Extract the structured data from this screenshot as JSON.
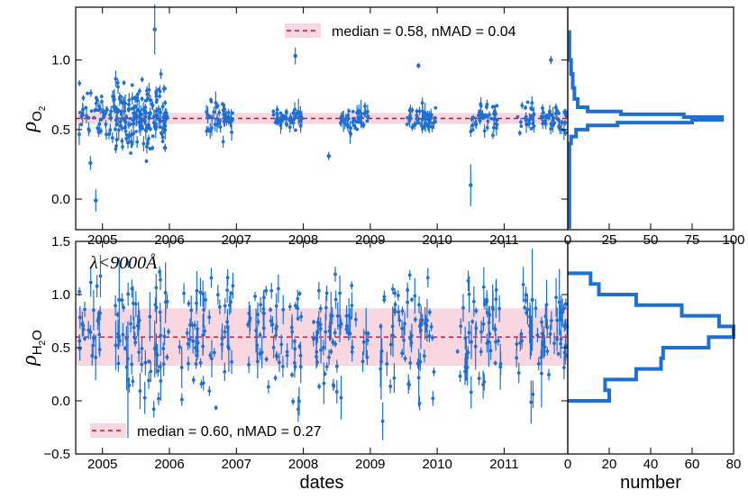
{
  "colors": {
    "points": "#1f6fd1",
    "median_line": "#c8102e",
    "band": "#f8d7e0",
    "frame": "#000000",
    "hist": "#1f6fd1"
  },
  "chart_data": [
    {
      "type": "scatter",
      "name": "rho_O2_vs_dates",
      "ylabel": {
        "symbol": "ρ",
        "subscript": "O",
        "subsub": "2"
      },
      "xlim": [
        2004.6,
        2011.95
      ],
      "ylim": [
        -0.22,
        1.38
      ],
      "yticks": [
        "0.0",
        "0.5",
        "1.0"
      ],
      "yticks_values": [
        0.0,
        0.5,
        1.0
      ],
      "median": 0.58,
      "nmad": 0.04,
      "band": [
        0.54,
        0.62
      ],
      "legend_label": "median = 0.58, nMAD = 0.04",
      "legend_position": "top-right",
      "seasons": [
        [
          2004.65,
          2005.95,
          0.6,
          0.11
        ],
        [
          2005.15,
          2005.99,
          0.62,
          0.12
        ],
        [
          2006.55,
          2006.95,
          0.58,
          0.05
        ],
        [
          2007.55,
          2007.98,
          0.58,
          0.04
        ],
        [
          2008.55,
          2008.98,
          0.57,
          0.04
        ],
        [
          2009.55,
          2009.98,
          0.58,
          0.04
        ],
        [
          2010.5,
          2010.9,
          0.57,
          0.05
        ],
        [
          2011.2,
          2011.45,
          0.57,
          0.05
        ],
        [
          2011.55,
          2011.95,
          0.58,
          0.05
        ]
      ],
      "notable_points": [
        {
          "x": 2005.78,
          "y": 1.22,
          "err": 0.18
        },
        {
          "x": 2004.9,
          "y": -0.01,
          "err": 0.08
        },
        {
          "x": 2004.82,
          "y": 0.26,
          "err": 0.05
        },
        {
          "x": 2007.88,
          "y": 1.03,
          "err": 0.06
        },
        {
          "x": 2010.5,
          "y": 0.1,
          "err": 0.15
        },
        {
          "x": 2008.38,
          "y": 0.31,
          "err": 0.03
        },
        {
          "x": 2009.72,
          "y": 0.96,
          "err": 0.02
        },
        {
          "x": 2011.7,
          "y": 1.0,
          "err": 0.03
        }
      ]
    },
    {
      "type": "scatter",
      "name": "rho_H2O_vs_dates",
      "ylabel": {
        "symbol": "ρ",
        "subscript": "H",
        "subsub": "2",
        "tail": "O"
      },
      "xlabel": "dates",
      "xlim": [
        2004.6,
        2011.95
      ],
      "ylim": [
        -0.5,
        1.5
      ],
      "yticks": [
        "−0.5",
        "0.0",
        "0.5",
        "1.0",
        "1.5"
      ],
      "yticks_values": [
        -0.5,
        0.0,
        0.5,
        1.0,
        1.5
      ],
      "xticks": [
        "2005",
        "2006",
        "2007",
        "2008",
        "2009",
        "2010",
        "2011"
      ],
      "xticks_values": [
        2005,
        2006,
        2007,
        2008,
        2009,
        2010,
        2011
      ],
      "median": 0.6,
      "nmad": 0.27,
      "band": [
        0.33,
        0.87
      ],
      "legend_label": "median = 0.60, nMAD = 0.27",
      "legend_position": "bottom-left",
      "annotation": "λ<9000Å",
      "seasons": [
        [
          2004.65,
          2004.98,
          0.65,
          0.28
        ],
        [
          2005.15,
          2005.99,
          0.6,
          0.3
        ],
        [
          2006.15,
          2006.95,
          0.62,
          0.28
        ],
        [
          2007.15,
          2007.98,
          0.6,
          0.27
        ],
        [
          2008.15,
          2008.98,
          0.6,
          0.27
        ],
        [
          2009.15,
          2009.98,
          0.6,
          0.28
        ],
        [
          2010.3,
          2010.95,
          0.62,
          0.27
        ],
        [
          2011.15,
          2011.95,
          0.6,
          0.27
        ]
      ],
      "notable_points": [
        {
          "x": 2011.42,
          "y": 0.95,
          "err": 0.48
        },
        {
          "x": 2005.38,
          "y": 0.2,
          "err": 0.55
        },
        {
          "x": 2005.25,
          "y": 0.95,
          "err": 0.4
        }
      ]
    },
    {
      "type": "histogram",
      "name": "rho_O2_histogram",
      "orientation": "horizontal",
      "xlim": [
        0,
        100
      ],
      "xticks": [
        "0",
        "25",
        "50",
        "75",
        "100"
      ],
      "xticks_values": [
        0,
        25,
        50,
        75,
        100
      ],
      "bins": [
        [
          -0.2,
          0.0,
          1
        ],
        [
          0.0,
          0.1,
          1
        ],
        [
          0.1,
          0.2,
          1
        ],
        [
          0.2,
          0.3,
          1
        ],
        [
          0.3,
          0.4,
          1
        ],
        [
          0.4,
          0.45,
          2
        ],
        [
          0.45,
          0.5,
          5
        ],
        [
          0.5,
          0.53,
          12
        ],
        [
          0.53,
          0.55,
          30
        ],
        [
          0.55,
          0.57,
          75
        ],
        [
          0.57,
          0.59,
          93
        ],
        [
          0.59,
          0.61,
          70
        ],
        [
          0.61,
          0.63,
          32
        ],
        [
          0.63,
          0.66,
          12
        ],
        [
          0.66,
          0.72,
          6
        ],
        [
          0.72,
          0.8,
          4
        ],
        [
          0.8,
          0.9,
          3
        ],
        [
          0.9,
          1.0,
          2
        ],
        [
          1.0,
          1.1,
          1
        ],
        [
          1.1,
          1.2,
          1
        ]
      ]
    },
    {
      "type": "histogram",
      "name": "rho_H2O_histogram",
      "orientation": "horizontal",
      "xlabel": "number",
      "xlim": [
        0,
        80
      ],
      "xticks": [
        "0",
        "20",
        "40",
        "60",
        "80"
      ],
      "xticks_values": [
        0,
        20,
        40,
        60,
        80
      ],
      "bins": [
        [
          0.0,
          0.1,
          20
        ],
        [
          0.1,
          0.2,
          18
        ],
        [
          0.2,
          0.3,
          33
        ],
        [
          0.3,
          0.4,
          45
        ],
        [
          0.4,
          0.5,
          46
        ],
        [
          0.5,
          0.6,
          68
        ],
        [
          0.6,
          0.65,
          80
        ],
        [
          0.65,
          0.7,
          80
        ],
        [
          0.7,
          0.8,
          73
        ],
        [
          0.8,
          0.9,
          55
        ],
        [
          0.9,
          1.0,
          33
        ],
        [
          1.0,
          1.1,
          15
        ],
        [
          1.1,
          1.2,
          11
        ]
      ]
    }
  ]
}
